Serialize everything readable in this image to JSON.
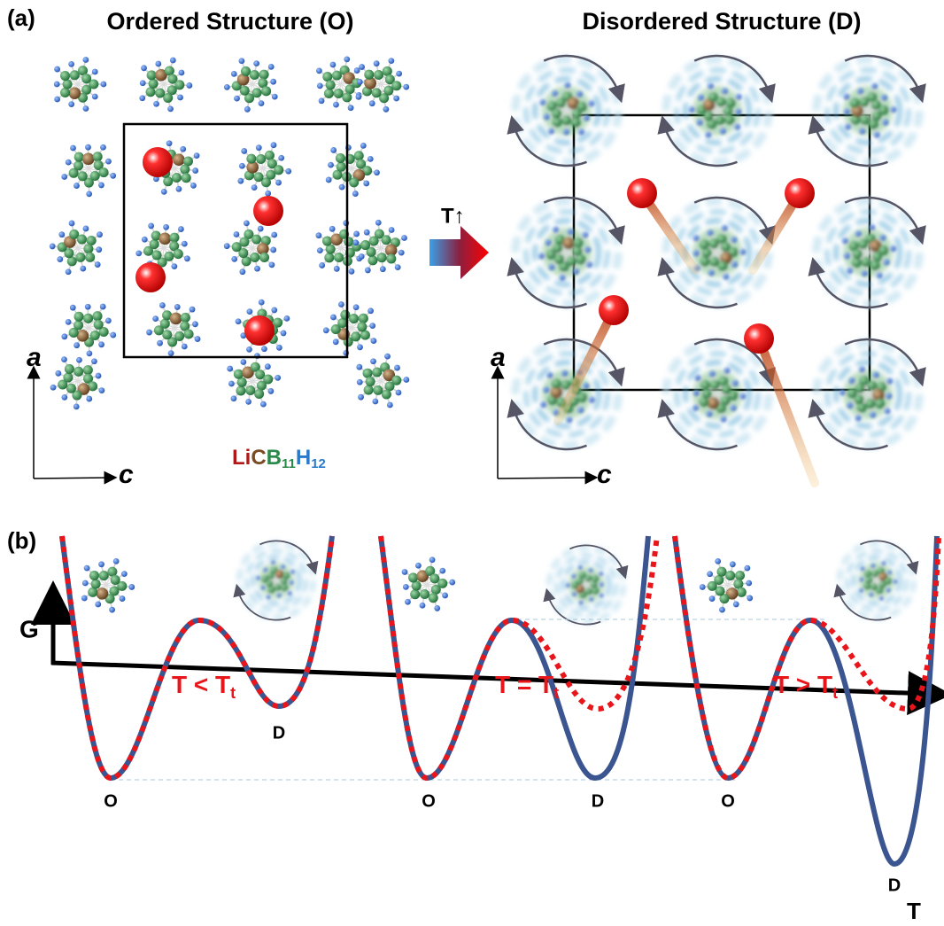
{
  "panel_a": {
    "label": "(a)",
    "ordered_title": "Ordered Structure (O)",
    "disordered_title": "Disordered Structure (D)",
    "transition": "T↑",
    "ordered_axes": {
      "vertical": "a",
      "horizontal": "c"
    },
    "disordered_axes": {
      "vertical": "a",
      "horizontal": "c"
    },
    "formula": {
      "li": "Li",
      "c": "C",
      "b": "B",
      "b_count": "11",
      "h": "H",
      "h_count": "12"
    }
  },
  "panel_b": {
    "label": "(b)",
    "y_axis": "G",
    "x_axis": "T",
    "plots": [
      {
        "minimum_left": "O",
        "minimum_right": "D",
        "condition": "T < T",
        "condition_sub": "t"
      },
      {
        "minimum_left": "O",
        "minimum_right": "D",
        "condition": "T = T",
        "condition_sub": "t"
      },
      {
        "minimum_left": "O",
        "minimum_right": "D",
        "condition": "T > T",
        "condition_sub": "t"
      }
    ]
  }
}
